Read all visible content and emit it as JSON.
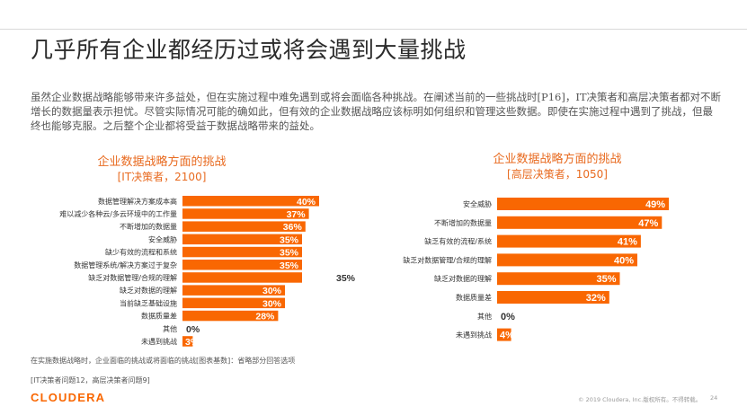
{
  "title": "几乎所有企业都经历过或将会遇到大量挑战",
  "intro": "虽然企业数据战略能够带来许多益处，但在实施过程中难免遇到或将会面临各种挑战。在阐述当前的一些挑战时[P16]，IT决策者和高层决策者都对不断增长的数据量表示担忧。尽管实际情况可能的确如此，但有效的企业数据战略应该标明如何组织和管理这些数据。即使在实施过程中遇到了挑战，但最终也能够克服。之后整个企业都将受益于数据战略带来的益处。",
  "colors": {
    "accent": "#f96702",
    "bar": "#f96702",
    "bar_label": "#ffffff",
    "axis_text": "#333333"
  },
  "chart_data": [
    {
      "type": "bar",
      "orientation": "horizontal",
      "title": "企业数据战略方面的挑战",
      "subtitle": "[IT决策者，2100]",
      "xlim": [
        0,
        50
      ],
      "categories": [
        "数据管理解决方案成本高",
        "难以减少各种云/多云环境中的工作量",
        "不断增加的数据量",
        "安全威胁",
        "缺少有效的流程和系统",
        "数据管理系统/解决方案过于复杂",
        "缺乏对数据管理/合规的理解",
        "缺乏对数据的理解",
        "当前缺乏基础设施",
        "数据质量差",
        "其他",
        "未遇到挑战"
      ],
      "values": [
        40,
        37,
        36,
        35,
        35,
        35,
        35,
        30,
        30,
        28,
        0,
        3
      ],
      "value_labels": [
        "40%",
        "37%",
        "36%",
        "35%",
        "35%",
        "35%",
        "35%",
        "30%",
        "30%",
        "28%",
        "0%",
        "3%"
      ]
    },
    {
      "type": "bar",
      "orientation": "horizontal",
      "title": "企业数据战略方面的挑战",
      "subtitle": "[高层决策者，1050]",
      "xlim": [
        0,
        50
      ],
      "categories": [
        "安全威胁",
        "不断增加的数据量",
        "缺乏有效的流程/系统",
        "缺乏对数据管理/合规的理解",
        "缺乏对数据的理解",
        "数据质量差",
        "其他",
        "未遇到挑战"
      ],
      "values": [
        49,
        47,
        41,
        40,
        35,
        32,
        0,
        4
      ],
      "value_labels": [
        "49%",
        "47%",
        "41%",
        "40%",
        "35%",
        "32%",
        "0%",
        "4%"
      ]
    }
  ],
  "footnote1": "在实施数据战略时，企业面临的挑战或将面临的挑战[图表基数]：省略部分回答选项",
  "footnote2": "[IT决策者问题12，高层决策者问题9]",
  "logo": "CLOUDERA",
  "copyright": "© 2019 Cloudera, Inc.版权所有。不得转载。",
  "page_number": "24"
}
